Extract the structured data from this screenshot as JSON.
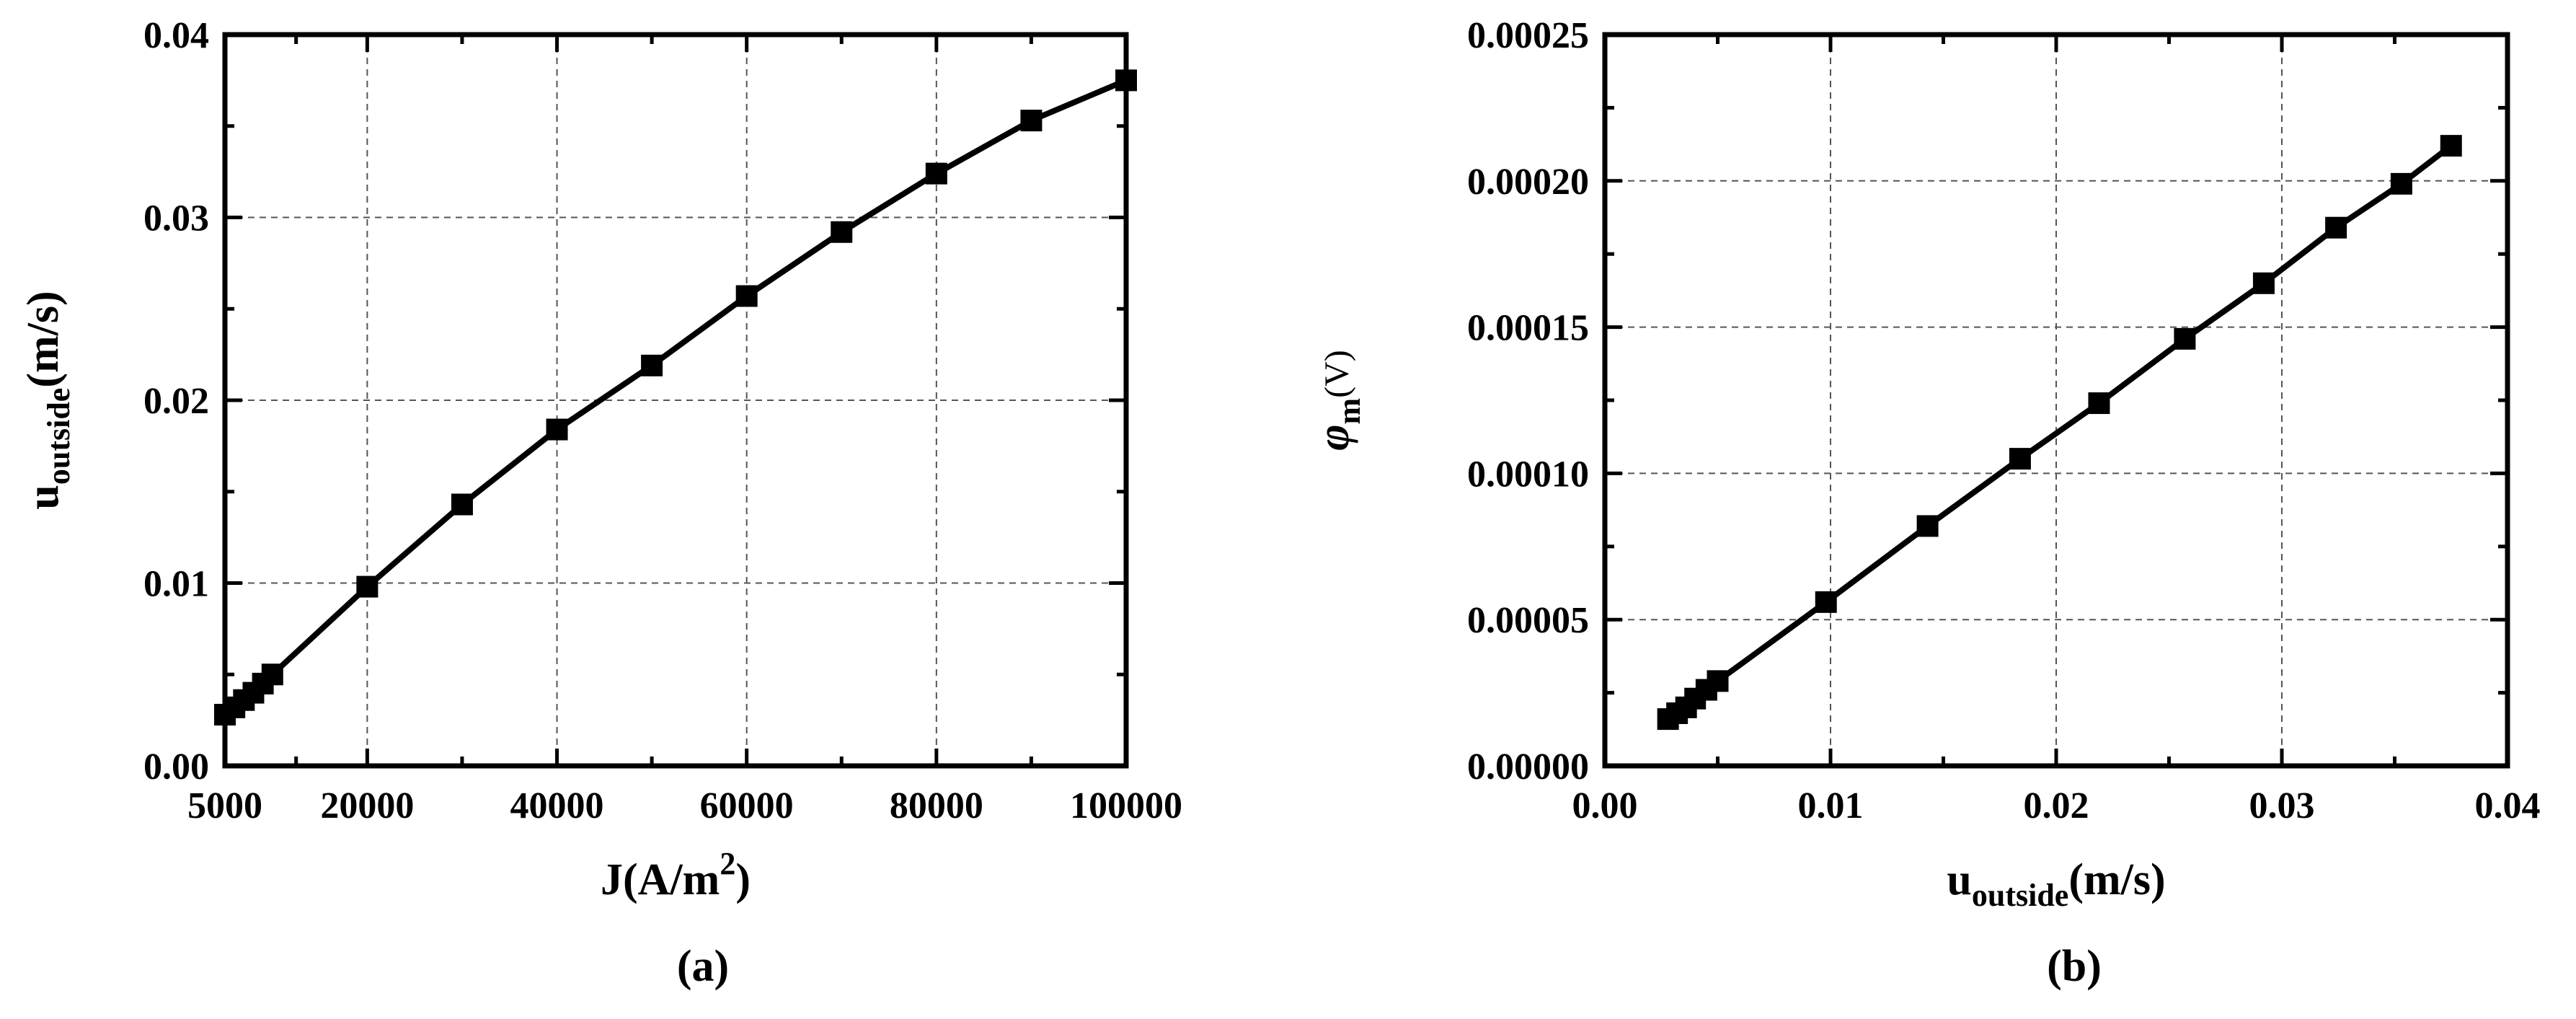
{
  "chart_data": [
    {
      "type": "line",
      "panel_label": "(a)",
      "xlabel": {
        "main": "J(A/m",
        "sup": "2",
        "tail": ")"
      },
      "ylabel": {
        "main": "u",
        "sub": "outside",
        "tail": "(m/s)"
      },
      "xlim": [
        5000,
        100000
      ],
      "ylim": [
        0,
        0.04
      ],
      "x_ticks": [
        5000,
        20000,
        40000,
        60000,
        80000,
        100000
      ],
      "x_tick_labels": [
        "5000",
        "20000",
        "40000",
        "60000",
        "80000",
        "100000"
      ],
      "y_ticks": [
        0,
        0.01,
        0.02,
        0.03,
        0.04
      ],
      "y_tick_labels": [
        "0.00",
        "0.01",
        "0.02",
        "0.03",
        "0.04"
      ],
      "grid": true,
      "marker": "square",
      "color": "#000000",
      "series": [
        {
          "x": [
            5000,
            6000,
            7000,
            8000,
            9000,
            10000,
            20000,
            30000,
            40000,
            50000,
            60000,
            70000,
            80000,
            90000,
            100000
          ],
          "y": [
            0.0028,
            0.0032,
            0.0036,
            0.004,
            0.0045,
            0.005,
            0.0098,
            0.0143,
            0.0184,
            0.0219,
            0.0257,
            0.0292,
            0.0324,
            0.0353,
            0.0375
          ]
        }
      ]
    },
    {
      "type": "line",
      "panel_label": "(b)",
      "xlabel": {
        "main": "u",
        "sub": "outside",
        "tail": "(m/s)"
      },
      "ylabel": {
        "main": "φ",
        "sub": "m",
        "tail": "(V)"
      },
      "xlim": [
        0,
        0.04
      ],
      "ylim": [
        0,
        0.00025
      ],
      "x_ticks": [
        0,
        0.01,
        0.02,
        0.03,
        0.04
      ],
      "x_tick_labels": [
        "0.00",
        "0.01",
        "0.02",
        "0.03",
        "0.04"
      ],
      "y_ticks": [
        0,
        5e-05,
        0.0001,
        0.00015,
        0.0002,
        0.00025
      ],
      "y_tick_labels": [
        "0.00000",
        "0.00005",
        "0.00010",
        "0.00015",
        "0.00020",
        "0.00025"
      ],
      "grid": true,
      "marker": "square",
      "color": "#000000",
      "series": [
        {
          "x": [
            0.0028,
            0.0032,
            0.0036,
            0.004,
            0.0045,
            0.005,
            0.0098,
            0.0143,
            0.0184,
            0.0219,
            0.0257,
            0.0292,
            0.0324,
            0.0353,
            0.0375
          ],
          "y": [
            1.6e-05,
            1.8e-05,
            2e-05,
            2.3e-05,
            2.6e-05,
            2.9e-05,
            5.6e-05,
            8.2e-05,
            0.000105,
            0.000124,
            0.000146,
            0.000165,
            0.000184,
            0.000199,
            0.000212
          ]
        }
      ]
    }
  ]
}
